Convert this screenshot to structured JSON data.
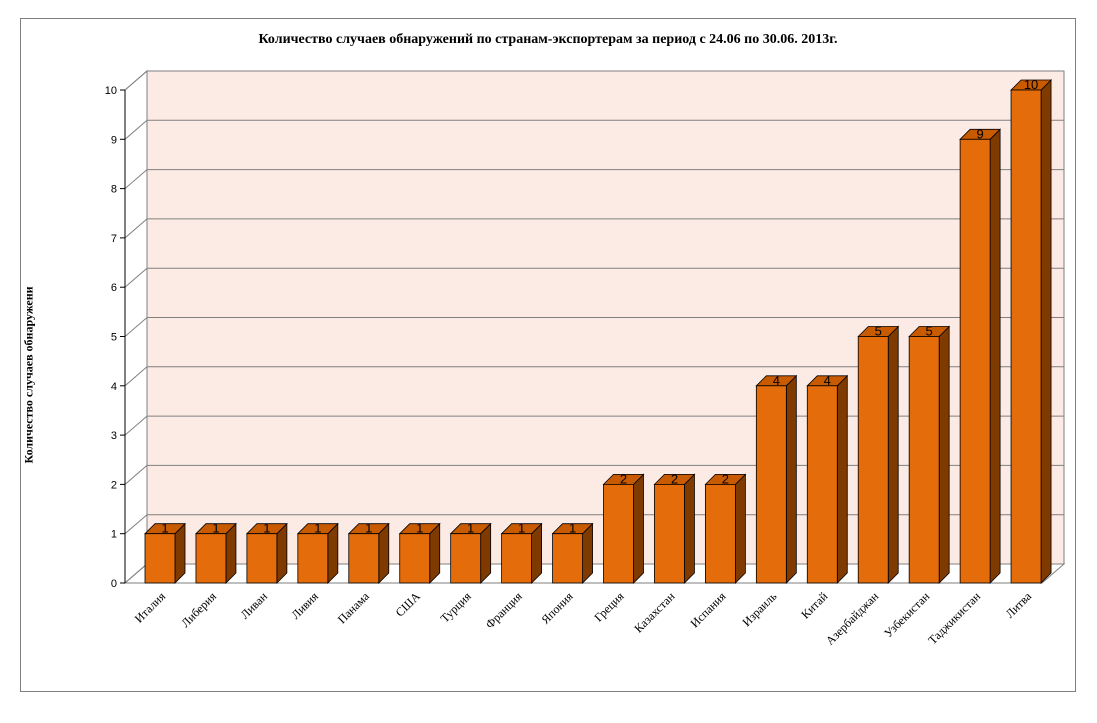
{
  "chart_data": {
    "type": "bar",
    "title": "Количество случаев обнаружений по странам-экспортерам за период с 24.06 по 30.06. 2013г.",
    "ylabel": "Количество случаев обнаружени",
    "xlabel": "",
    "ylim": [
      0,
      10
    ],
    "yticks": [
      "0",
      "1",
      "2",
      "3",
      "4",
      "5",
      "6",
      "7",
      "8",
      "9",
      "10"
    ],
    "grid": true,
    "legend": "none",
    "style": "3d-column",
    "colors": {
      "bar_front": "#e46c0a",
      "bar_side": "#7f3a00",
      "bar_top": "#c85a00",
      "wall": "#fcebe4",
      "grid": "#808080"
    },
    "categories": [
      "Италия",
      "Либерия",
      "Ливан",
      "Ливия",
      "Панама",
      "США",
      "Турция",
      "Франция",
      "Япония",
      "Греция",
      "Казахстан",
      "Испания",
      "Израиль",
      "Китай",
      "Азербайджан",
      "Узбекистан",
      "Таджикистан",
      "Литва"
    ],
    "values": [
      1,
      1,
      1,
      1,
      1,
      1,
      1,
      1,
      1,
      2,
      2,
      2,
      4,
      4,
      5,
      5,
      9,
      10
    ]
  }
}
